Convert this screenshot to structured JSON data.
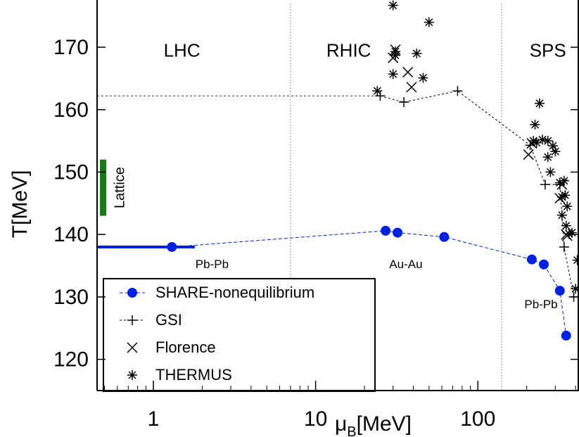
{
  "chart_data": {
    "type": "scatter",
    "xscale": "log",
    "xlim": [
      0.45,
      420
    ],
    "ylim": [
      115,
      177
    ],
    "xticks": [
      {
        "value": 1,
        "label": "1"
      },
      {
        "value": 10,
        "label": "10"
      },
      {
        "value": 100,
        "label": "100"
      }
    ],
    "yticks": [
      {
        "value": 120,
        "label": "120"
      },
      {
        "value": 130,
        "label": "130"
      },
      {
        "value": 140,
        "label": "140"
      },
      {
        "value": 150,
        "label": "150"
      },
      {
        "value": 160,
        "label": "160"
      },
      {
        "value": 170,
        "label": "170"
      }
    ],
    "xlabel": {
      "mu": "μ",
      "sub": "B",
      "rest": "[MeV]"
    },
    "ylabel": "T[MeV]",
    "region_dividers": [
      7,
      140
    ],
    "regions": [
      {
        "label": "LHC",
        "x": 1.5,
        "y": 168.5
      },
      {
        "label": "RHIC",
        "x": 16,
        "y": 168.5
      },
      {
        "label": "SPS",
        "x": 270,
        "y": 168.5
      }
    ],
    "system_labels": [
      {
        "label": "Pb-Pb",
        "x": 2.3,
        "y": 134.6
      },
      {
        "label": "Au-Au",
        "x": 36,
        "y": 134.6
      },
      {
        "label": "Pb-Pb",
        "x": 245,
        "y": 128.2
      }
    ],
    "lattice": {
      "label": "Lattice",
      "x": 0.49,
      "y_min": 143,
      "y_max": 152,
      "color": "#1a7a1a"
    },
    "lhc_band": {
      "x_min": 0.45,
      "x_max": 1.8,
      "y": 138,
      "color": "#0022dd"
    },
    "gsi_ref_line": {
      "y": 162.2,
      "x_min": 0.45,
      "x_max": 25
    },
    "series": [
      {
        "name": "SHARE-nonequilibrium",
        "marker": "filled-circle",
        "color": "#0022dd",
        "connect": "dashed",
        "points": [
          [
            1.3,
            138
          ],
          [
            27,
            140.6
          ],
          [
            32,
            140.3
          ],
          [
            62,
            139.6
          ],
          [
            215,
            136
          ],
          [
            255,
            135.2
          ],
          [
            320,
            131
          ],
          [
            350,
            123.8
          ]
        ]
      },
      {
        "name": "GSI",
        "marker": "plus",
        "color": "#000000",
        "connect": "dotted",
        "points": [
          [
            25,
            162.2
          ],
          [
            35,
            161.2
          ],
          [
            75,
            163
          ],
          [
            210,
            154.3
          ],
          [
            260,
            148
          ],
          [
            320,
            148
          ],
          [
            340,
            138
          ],
          [
            390,
            130
          ]
        ]
      },
      {
        "name": "Florence",
        "marker": "cross",
        "color": "#000000",
        "connect": "none",
        "points": [
          [
            30,
            168.3
          ],
          [
            31,
            169.6
          ],
          [
            37,
            166
          ],
          [
            39,
            163.6
          ],
          [
            205,
            152.8
          ],
          [
            215,
            154.6
          ],
          [
            320,
            145.8
          ],
          [
            330,
            148
          ],
          [
            350,
            140
          ],
          [
            355,
            139.8
          ]
        ]
      },
      {
        "name": "THERMUS",
        "marker": "asterisk",
        "color": "#000000",
        "connect": "none",
        "points": [
          [
            24,
            163
          ],
          [
            30,
            176.7
          ],
          [
            30,
            165.7
          ],
          [
            31,
            168.7
          ],
          [
            31,
            169.3
          ],
          [
            42,
            169
          ],
          [
            46,
            165.1
          ],
          [
            50,
            174
          ],
          [
            220,
            155
          ],
          [
            225,
            157.6
          ],
          [
            230,
            154.7
          ],
          [
            240,
            161
          ],
          [
            250,
            155.2
          ],
          [
            270,
            155
          ],
          [
            270,
            152.4
          ],
          [
            280,
            150
          ],
          [
            290,
            154.2
          ],
          [
            300,
            153.3
          ],
          [
            320,
            148.3
          ],
          [
            330,
            146
          ],
          [
            330,
            143.1
          ],
          [
            340,
            148.6
          ],
          [
            345,
            146.3
          ],
          [
            350,
            141.4
          ],
          [
            355,
            144.5
          ],
          [
            365,
            140.1
          ],
          [
            380,
            140.3
          ],
          [
            400,
            131.3
          ],
          [
            410,
            135.9
          ]
        ]
      }
    ]
  }
}
